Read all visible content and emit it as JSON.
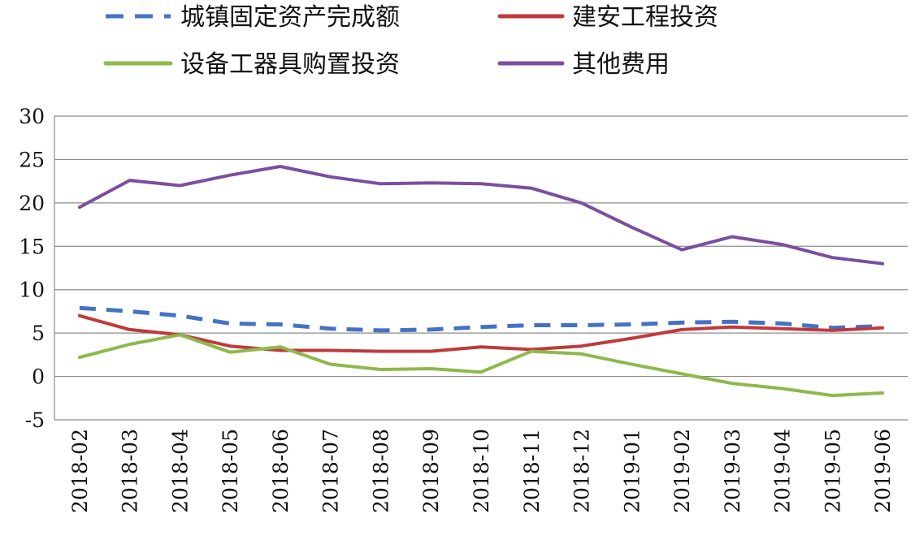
{
  "chart_data": {
    "type": "line",
    "title": "",
    "xlabel": "",
    "ylabel": "",
    "ylim": [
      -5,
      30
    ],
    "yticks": [
      30,
      25,
      20,
      15,
      10,
      5,
      0,
      -5
    ],
    "grid": true,
    "legend_position": "top",
    "categories": [
      "2018-02",
      "2018-03",
      "2018-04",
      "2018-05",
      "2018-06",
      "2018-07",
      "2018-08",
      "2018-09",
      "2018-10",
      "2018-11",
      "2018-12",
      "2019-01",
      "2019-02",
      "2019-03",
      "2019-04",
      "2019-05",
      "2019-06"
    ],
    "series": [
      {
        "name": "城镇固定资产完成额",
        "color": "#4472C4",
        "dashed": true,
        "values": [
          7.9,
          7.5,
          7.0,
          6.1,
          6.0,
          5.5,
          5.3,
          5.4,
          5.7,
          5.9,
          5.9,
          6.0,
          6.2,
          6.3,
          6.1,
          5.6,
          5.8
        ]
      },
      {
        "name": "建安工程投资",
        "color": "#C0393B",
        "dashed": false,
        "values": [
          7.0,
          5.4,
          4.8,
          3.5,
          3.0,
          3.0,
          2.9,
          2.9,
          3.4,
          3.1,
          3.5,
          4.4,
          5.4,
          5.7,
          5.5,
          5.3,
          5.6
        ]
      },
      {
        "name": "设备工器具购置投资",
        "color": "#8DB94A",
        "dashed": false,
        "values": [
          2.2,
          3.7,
          4.8,
          2.8,
          3.4,
          1.4,
          0.8,
          0.9,
          0.5,
          2.9,
          2.6,
          1.4,
          0.3,
          -0.8,
          -1.4,
          -2.2,
          -1.9
        ]
      },
      {
        "name": "其他费用",
        "color": "#7B4EA0",
        "dashed": false,
        "values": [
          19.5,
          22.6,
          22.0,
          23.2,
          24.2,
          23.0,
          22.2,
          22.3,
          22.2,
          21.7,
          20.0,
          17.2,
          14.6,
          16.1,
          15.2,
          13.7,
          13.0
        ]
      }
    ]
  }
}
